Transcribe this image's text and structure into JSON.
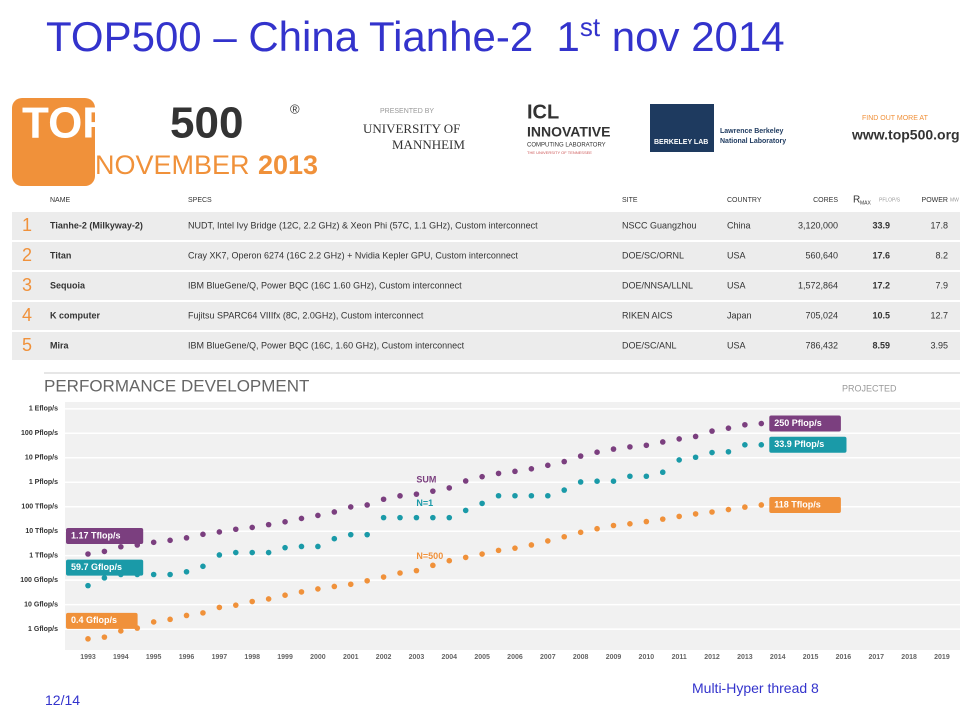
{
  "slide": {
    "title_main": "TOP500 – China Tianhe-2  1",
    "title_sup": "st",
    "title_end": " nov 2014",
    "page": "12/14",
    "footer": "Multi-Hyper thread 8"
  },
  "header": {
    "logo_top": "TOP",
    "logo_500": "500",
    "registered": "®",
    "edition_month": "NOVEMBER",
    "edition_year": "2013",
    "presented_by": "PRESENTED BY",
    "university_of": "UNIVERSITY OF",
    "mannheim": "MANNHEIM",
    "icl": "ICL",
    "innovative": "INNOVATIVE",
    "computing_lab": "COMPUTING LABORATORY",
    "utk": "THE UNIVERSITY OF TENNESSEE",
    "berkeley_lab": "BERKELEY LAB",
    "lbnl_1": "Lawrence Berkeley",
    "lbnl_2": "National Laboratory",
    "find_out": "FIND OUT MORE AT",
    "url": "www.top500.org"
  },
  "table": {
    "columns": [
      "NAME",
      "SPECS",
      "SITE",
      "COUNTRY",
      "CORES",
      "R",
      "POWER"
    ],
    "rmax_sub": "MAX",
    "rmax_unit": "PFLOP/S",
    "power_unit": "MW",
    "rows": [
      [
        "1",
        "Tianhe-2 (Milkyway-2)",
        "NUDT, Intel Ivy Bridge (12C, 2.2 GHz) & Xeon Phi (57C, 1.1 GHz), Custom interconnect",
        "NSCC Guangzhou",
        "China",
        "3,120,000",
        "33.9",
        "17.8"
      ],
      [
        "2",
        "Titan",
        "Cray XK7, Operon 6274 (16C 2.2 GHz) + Nvidia Kepler GPU, Custom interconnect",
        "DOE/SC/ORNL",
        "USA",
        "560,640",
        "17.6",
        "8.2"
      ],
      [
        "3",
        "Sequoia",
        "IBM BlueGene/Q, Power BQC (16C 1.60 GHz), Custom interconnect",
        "DOE/NNSA/LLNL",
        "USA",
        "1,572,864",
        "17.2",
        "7.9"
      ],
      [
        "4",
        "K computer",
        "Fujitsu SPARC64 VIIIfx (8C, 2.0GHz), Custom interconnect",
        "RIKEN AICS",
        "Japan",
        "705,024",
        "10.5",
        "12.7"
      ],
      [
        "5",
        "Mira",
        "IBM BlueGene/Q, Power BQC (16C, 1.60 GHz), Custom interconnect",
        "DOE/SC/ANL",
        "USA",
        "786,432",
        "8.59",
        "3.95"
      ]
    ]
  },
  "chart_data": {
    "type": "scatter",
    "title": "PERFORMANCE DEVELOPMENT",
    "annotation": "PROJECTED",
    "log_y": true,
    "grid": true,
    "x": [
      1993,
      1993.5,
      1994,
      1994.5,
      1995,
      1995.5,
      1996,
      1996.5,
      1997,
      1997.5,
      1998,
      1998.5,
      1999,
      1999.5,
      2000,
      2000.5,
      2001,
      2001.5,
      2002,
      2002.5,
      2003,
      2003.5,
      2004,
      2004.5,
      2005,
      2005.5,
      2006,
      2006.5,
      2007,
      2007.5,
      2008,
      2008.5,
      2009,
      2009.5,
      2010,
      2010.5,
      2011,
      2011.5,
      2012,
      2012.5,
      2013,
      2013.5
    ],
    "series": [
      {
        "name": "SUM",
        "color": "#7b3f7f",
        "values": [
          1170,
          1493,
          2317,
          2732,
          3516,
          4243,
          5355,
          7467,
          9317,
          12010,
          14270,
          18560,
          24170,
          33180,
          44100,
          60970,
          98190,
          118000,
          202000,
          278000,
          326000,
          433000,
          588000,
          1127000,
          1690000,
          2300000,
          2790000,
          3540000,
          4920000,
          6970000,
          11700000,
          16900000,
          22600000,
          27900000,
          32400000,
          44200000,
          58900000,
          74200000,
          123000000,
          162000000,
          223000000,
          250000000
        ],
        "value_labels": [
          "1.17 Tflop/s",
          null,
          null,
          null,
          null,
          null,
          null,
          null,
          null,
          null,
          null,
          null,
          null,
          null,
          null,
          null,
          null,
          null,
          null,
          null,
          null,
          null,
          null,
          null,
          null,
          null,
          null,
          null,
          null,
          null,
          null,
          null,
          null,
          null,
          null,
          null,
          null,
          null,
          null,
          null,
          null,
          "250 Pflop/s"
        ]
      },
      {
        "name": "N=1",
        "color": "#1a9aa8",
        "values": [
          59.7,
          124,
          170,
          170,
          170,
          170,
          220,
          368,
          1068,
          1338,
          1338,
          1338,
          2121,
          2379,
          2379,
          4938,
          7226,
          7226,
          35860,
          35860,
          35860,
          35860,
          35860,
          70720,
          136800,
          280600,
          280600,
          280600,
          280600,
          478200,
          1026000,
          1105000,
          1105000,
          1759000,
          1759000,
          2566000,
          8162000,
          10510000,
          16320000,
          17590000,
          33860000,
          33900000
        ],
        "value_labels": [
          "59.7 Gflop/s",
          null,
          null,
          null,
          null,
          null,
          null,
          null,
          null,
          null,
          null,
          null,
          null,
          null,
          null,
          null,
          null,
          null,
          null,
          null,
          null,
          null,
          null,
          null,
          null,
          null,
          null,
          null,
          null,
          null,
          null,
          null,
          null,
          null,
          null,
          null,
          null,
          null,
          null,
          null,
          null,
          "33.9 Pflop/s"
        ]
      },
      {
        "name": "N=500",
        "color": "#f0913a",
        "values": [
          0.4,
          0.47,
          0.84,
          1.1,
          1.96,
          2.5,
          3.6,
          4.6,
          7.7,
          9.5,
          13.4,
          17.1,
          24.3,
          33.1,
          43.8,
          55.1,
          67.8,
          94.3,
          134,
          196,
          245,
          403,
          624,
          851,
          1166,
          1646,
          2026,
          2737,
          4005,
          5929,
          9000,
          12640,
          17090,
          20050,
          24670,
          31120,
          40190,
          50940,
          60820,
          76500,
          96620,
          118000
        ],
        "value_labels": [
          "0.4 Gflop/s",
          null,
          null,
          null,
          null,
          null,
          null,
          null,
          null,
          null,
          null,
          null,
          null,
          null,
          null,
          null,
          null,
          null,
          null,
          null,
          null,
          null,
          null,
          null,
          null,
          null,
          null,
          null,
          null,
          null,
          null,
          null,
          null,
          null,
          null,
          null,
          null,
          null,
          null,
          null,
          null,
          "118 Tflop/s"
        ]
      }
    ],
    "xlim": [
      1992.3,
      2019.55
    ],
    "xticks": [
      1993,
      1994,
      1995,
      1996,
      1997,
      1998,
      1999,
      2000,
      2001,
      2002,
      2003,
      2004,
      2005,
      2006,
      2007,
      2008,
      2009,
      2010,
      2011,
      2012,
      2013,
      2014,
      2015,
      2016,
      2017,
      2018,
      2019
    ],
    "ylim": [
      0.14,
      1900000000
    ],
    "yticks": [
      {
        "value": 1,
        "label": "1 Gflop/s"
      },
      {
        "value": 10,
        "label": "10 Gflop/s"
      },
      {
        "value": 100,
        "label": "100 Gflop/s"
      },
      {
        "value": 1000,
        "label": "1 Tflop/s"
      },
      {
        "value": 10000,
        "label": "10 Tflop/s"
      },
      {
        "value": 100000,
        "label": "100 Tflop/s"
      },
      {
        "value": 1000000,
        "label": "1 Pflop/s"
      },
      {
        "value": 10000000,
        "label": "10 Pflop/s"
      },
      {
        "value": 100000000,
        "label": "100 Pflop/s"
      },
      {
        "value": 1000000000,
        "label": "1 Eflop/s"
      }
    ]
  }
}
